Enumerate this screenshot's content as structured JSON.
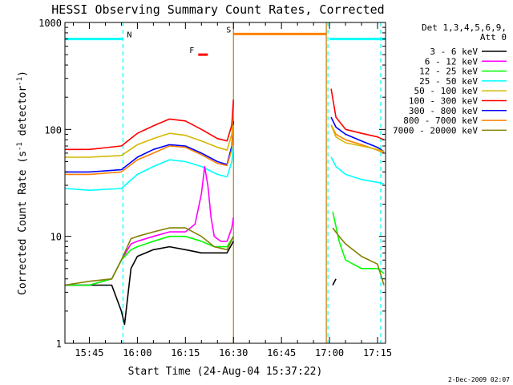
{
  "chart_data": {
    "type": "line",
    "title": "HESSI Observing Summary Count Rates, Corrected",
    "xlabel": "Start Time (24-Aug-04 15:37:22)",
    "ylabel": "Corrected Count Rate (s⁻¹ detector⁻¹)",
    "ylabel_main": "Corrected Count Rate (s",
    "ylabel_mid": " detector",
    "ylabel_end": ")",
    "ylabel_sup": "-1",
    "scale_y": "log",
    "ylim": [
      1,
      1000
    ],
    "xlim_minutes": [
      37.37,
      137.5
    ],
    "x_tick_labels": [
      "15:45",
      "16:00",
      "16:15",
      "16:30",
      "16:45",
      "17:00",
      "17:15"
    ],
    "x_tick_minutes": [
      45,
      60,
      75,
      90,
      105,
      120,
      135
    ],
    "y_tick_labels": [
      "1",
      "10",
      "100",
      "1000"
    ],
    "y_tick_values": [
      1,
      10,
      100,
      1000
    ],
    "legend_title": [
      "Det 1,3,4,5,6,9,",
      "Att 0"
    ],
    "legend_placement": "right",
    "gaps_minutes": [
      [
        90,
        120
      ]
    ],
    "series": [
      {
        "name": "3 - 6 keV",
        "color": "#000000",
        "x": [
          37.4,
          45,
          52,
          55,
          56,
          58,
          60,
          65,
          70,
          75,
          80,
          84,
          88,
          90,
          120,
          121,
          122
        ],
        "y": [
          3.5,
          3.5,
          3.5,
          2,
          1.5,
          5,
          6.5,
          7.5,
          8,
          7.5,
          7,
          7,
          7,
          9,
          null,
          3.5,
          4
        ]
      },
      {
        "name": "6 - 12 keV",
        "color": "#ff00ff",
        "x": [
          37.4,
          45,
          52,
          55,
          58,
          60,
          65,
          70,
          75,
          78,
          80,
          81,
          82,
          83,
          84,
          86,
          88,
          89.5,
          90
        ],
        "y": [
          3.5,
          3.5,
          4,
          6,
          8.5,
          9,
          10,
          11,
          11,
          13,
          25,
          45,
          30,
          15,
          10,
          9,
          9,
          12,
          15
        ]
      },
      {
        "name": "12 - 25 keV",
        "color": "#00ff00",
        "x": [
          37.4,
          45,
          52,
          55,
          58,
          60,
          65,
          70,
          75,
          80,
          84,
          88,
          90,
          120,
          121,
          123,
          125,
          130,
          135,
          137
        ],
        "y": [
          3.5,
          3.5,
          4,
          6,
          7.5,
          8,
          9,
          10,
          10,
          9,
          8,
          8,
          10,
          null,
          17,
          9,
          6,
          5,
          5,
          4.5
        ]
      },
      {
        "name": "25 - 50 keV",
        "color": "#00ffff",
        "x": [
          37.4,
          45,
          55,
          60,
          65,
          70,
          75,
          80,
          85,
          88,
          89.5,
          90,
          120,
          120.5,
          122,
          125,
          130,
          135,
          137
        ],
        "y": [
          28,
          27,
          28,
          38,
          45,
          52,
          50,
          45,
          38,
          36,
          50,
          70,
          null,
          55,
          45,
          38,
          34,
          32,
          31
        ]
      },
      {
        "name": "50 - 100 keV",
        "color": "#d4b800",
        "x": [
          37.4,
          45,
          55,
          60,
          65,
          70,
          75,
          80,
          85,
          88,
          89.5,
          90,
          120,
          120.5,
          122,
          125,
          130,
          135,
          137
        ],
        "y": [
          55,
          55,
          57,
          72,
          82,
          92,
          88,
          78,
          68,
          64,
          90,
          150,
          null,
          110,
          85,
          75,
          70,
          65,
          62
        ]
      },
      {
        "name": "100 - 300 keV",
        "color": "#ff0000",
        "x": [
          37.4,
          45,
          55,
          60,
          65,
          70,
          75,
          80,
          85,
          88,
          89.5,
          90,
          120,
          120.5,
          122,
          125,
          130,
          135,
          137
        ],
        "y": [
          65,
          65,
          70,
          92,
          108,
          125,
          120,
          100,
          82,
          78,
          110,
          190,
          null,
          240,
          130,
          100,
          92,
          85,
          80
        ]
      },
      {
        "name": "300 - 800 keV",
        "color": "#0000ff",
        "x": [
          37.4,
          45,
          55,
          60,
          65,
          70,
          75,
          80,
          85,
          88,
          89.5,
          90,
          120,
          120.5,
          122,
          125,
          130,
          135,
          137
        ],
        "y": [
          40,
          40,
          42,
          55,
          65,
          72,
          70,
          60,
          50,
          47,
          70,
          120,
          null,
          130,
          105,
          90,
          78,
          68,
          62
        ]
      },
      {
        "name": "800 - 7000 keV",
        "color": "#ff8000",
        "x": [
          37.4,
          45,
          55,
          60,
          65,
          70,
          75,
          80,
          85,
          88,
          89.5,
          90,
          120,
          120.5,
          122,
          125,
          130,
          135,
          137
        ],
        "y": [
          38,
          38,
          40,
          52,
          60,
          70,
          68,
          58,
          48,
          46,
          65,
          110,
          null,
          110,
          90,
          80,
          72,
          64,
          60
        ]
      },
      {
        "name": "7000 - 20000 keV",
        "color": "#808000",
        "x": [
          37.4,
          45,
          52,
          55,
          58,
          60,
          65,
          70,
          75,
          80,
          84,
          88,
          90,
          120,
          121,
          123,
          125,
          130,
          135,
          137
        ],
        "y": [
          3.5,
          3.8,
          4,
          6,
          9.5,
          10,
          11,
          12,
          12,
          10,
          8,
          7.5,
          10,
          null,
          12,
          10,
          8.5,
          6.5,
          5.5,
          3.5
        ]
      }
    ],
    "observing_flags": [
      {
        "label": "N",
        "color": "#00ffff",
        "segments": [
          [
            37.4,
            55.5
          ],
          [
            120,
            137.5
          ]
        ],
        "level": 700
      },
      {
        "label": "S",
        "color": "#ff8000",
        "segments": [
          [
            90,
            119
          ]
        ],
        "level": 780
      },
      {
        "label": "F",
        "color": "#ff0000",
        "segments": [
          [
            79,
            82
          ]
        ],
        "level": 500
      }
    ],
    "markers_vertical": [
      {
        "minute": 55.5,
        "color": "#00ffff",
        "style": "dashed"
      },
      {
        "minute": 119.5,
        "color": "#00ffff",
        "style": "dashed"
      },
      {
        "minute": 136,
        "color": "#00ffff",
        "style": "dashed"
      },
      {
        "minute": 90,
        "color": "#c08000",
        "style": "solid"
      },
      {
        "minute": 119,
        "color": "#c08000",
        "style": "solid"
      }
    ]
  },
  "footer_date": "2-Dec-2009 02:07"
}
